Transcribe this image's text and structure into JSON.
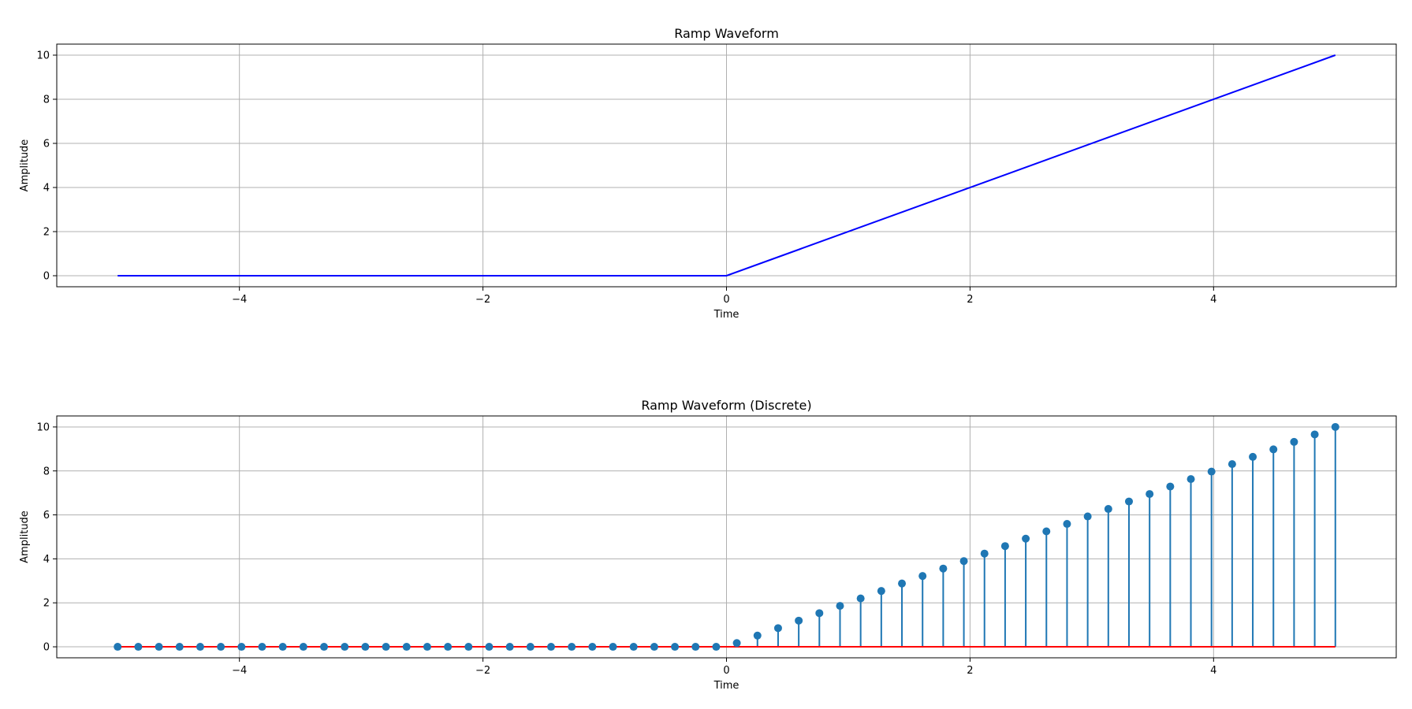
{
  "chart_data": [
    {
      "type": "line",
      "title": "Ramp Waveform",
      "xlabel": "Time",
      "ylabel": "Amplitude",
      "xlim": [
        -5.5,
        5.5
      ],
      "ylim": [
        -0.5,
        10.5
      ],
      "xticks": [
        -4,
        -2,
        0,
        2,
        4
      ],
      "xtick_labels": [
        "−4",
        "−2",
        "0",
        "2",
        "4"
      ],
      "yticks": [
        0,
        2,
        4,
        6,
        8,
        10
      ],
      "ytick_labels": [
        "0",
        "2",
        "4",
        "6",
        "8",
        "10"
      ],
      "grid": true,
      "series": [
        {
          "x": [
            -5,
            0,
            5
          ],
          "y": [
            0,
            0,
            10
          ],
          "color": "#0000ff"
        }
      ]
    },
    {
      "type": "stem",
      "title": "Ramp Waveform (Discrete)",
      "xlabel": "Time",
      "ylabel": "Amplitude",
      "xlim": [
        -5.5,
        5.5
      ],
      "ylim": [
        -0.5,
        10.5
      ],
      "xticks": [
        -4,
        -2,
        0,
        2,
        4
      ],
      "xtick_labels": [
        "−4",
        "−2",
        "0",
        "2",
        "4"
      ],
      "yticks": [
        0,
        2,
        4,
        6,
        8,
        10
      ],
      "ytick_labels": [
        "0",
        "2",
        "4",
        "6",
        "8",
        "10"
      ],
      "grid": true,
      "baseline": 0,
      "baseline_color": "#ff0000",
      "stem_color": "#1f77b4",
      "marker_color": "#1f77b4",
      "x": [
        -5,
        -4.8305,
        -4.661,
        -4.4915,
        -4.322,
        -4.1525,
        -3.983,
        -3.8136,
        -3.6441,
        -3.4746,
        -3.3051,
        -3.1356,
        -2.9661,
        -2.7966,
        -2.6271,
        -2.4576,
        -2.2881,
        -2.1186,
        -1.9492,
        -1.7797,
        -1.6102,
        -1.4407,
        -1.2712,
        -1.1017,
        -0.9322,
        -0.7627,
        -0.5932,
        -0.4237,
        -0.2542,
        -0.0847,
        0.0847,
        0.2542,
        0.4237,
        0.5932,
        0.7627,
        0.9322,
        1.1017,
        1.2712,
        1.4407,
        1.6102,
        1.7797,
        1.9492,
        2.1186,
        2.2881,
        2.4576,
        2.6271,
        2.7966,
        2.9661,
        3.1356,
        3.3051,
        3.4746,
        3.6441,
        3.8136,
        3.983,
        4.1525,
        4.322,
        4.4915,
        4.661,
        4.8305,
        5
      ],
      "y": [
        0,
        0,
        0,
        0,
        0,
        0,
        0,
        0,
        0,
        0,
        0,
        0,
        0,
        0,
        0,
        0,
        0,
        0,
        0,
        0,
        0,
        0,
        0,
        0,
        0,
        0,
        0,
        0,
        0,
        0,
        0.17,
        0.51,
        0.85,
        1.19,
        1.53,
        1.86,
        2.2,
        2.54,
        2.88,
        3.22,
        3.56,
        3.9,
        4.24,
        4.58,
        4.92,
        5.25,
        5.59,
        5.93,
        6.27,
        6.61,
        6.95,
        7.29,
        7.63,
        7.97,
        8.31,
        8.64,
        8.98,
        9.32,
        9.66,
        10
      ]
    }
  ]
}
